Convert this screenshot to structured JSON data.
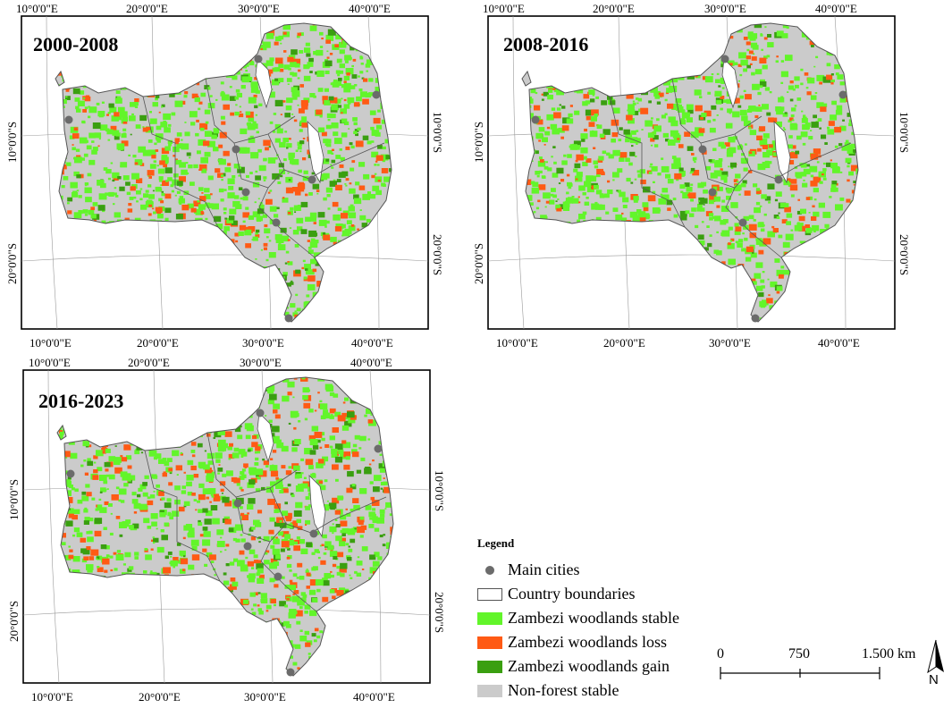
{
  "colors": {
    "stable": "#62f52a",
    "loss": "#ff5a14",
    "gain": "#3a9f10",
    "nonforest": "#cbcbcb",
    "city": "#6b6b6b",
    "boundary": "#555555"
  },
  "panels": [
    {
      "title": "2000-2008",
      "top_lon": [
        "10°0'0\"E",
        "20°0'0\"E",
        "30°0'0\"E",
        "40°0'0\"E"
      ],
      "bottom_lon": [
        "10°0'0\"E",
        "20°0'0\"E",
        "30°0'0\"E",
        "40°0'0\"E"
      ],
      "left_lat": [
        "10°0'0\"S",
        "20°0'0\"S"
      ],
      "right_lat": [
        "10°0'0\"S",
        "20°0'0\"S"
      ]
    },
    {
      "title": "2008-2016",
      "top_lon": [
        "10°0'0\"E",
        "20°0'0\"E",
        "30°0'0\"E",
        "40°0'0\"E"
      ],
      "bottom_lon": [
        "10°0'0\"E",
        "20°0'0\"E",
        "30°0'0\"E",
        "40°0'0\"E"
      ],
      "left_lat": [
        "10°0'0\"S",
        "20°0'0\"S"
      ],
      "right_lat": [
        "10°0'0\"S",
        "20°0'0\"S"
      ]
    },
    {
      "title": "2016-2023",
      "top_lon": [
        "10°0'0\"E",
        "20°0'0\"E",
        "30°0'0\"E",
        "40°0'0\"E"
      ],
      "bottom_lon": [
        "10°0'0\"E",
        "20°0'0\"E",
        "30°0'0\"E",
        "40°0'0\"E"
      ],
      "left_lat": [
        "10°0'0\"S",
        "20°0'0\"S"
      ],
      "right_lat": [
        "10°0'0\"S",
        "20°0'0\"S"
      ]
    }
  ],
  "legend": {
    "title": "Legend",
    "items": [
      {
        "label": "Main cities",
        "kind": "city"
      },
      {
        "label": "Country boundaries",
        "kind": "boundary"
      },
      {
        "label": "Zambezi woodlands stable",
        "kind": "stable"
      },
      {
        "label": "Zambezi woodlands loss",
        "kind": "loss"
      },
      {
        "label": "Zambezi woodlands gain",
        "kind": "gain"
      },
      {
        "label": "Non-forest stable",
        "kind": "nonforest"
      }
    ]
  },
  "scale_bar": {
    "labels": [
      "0",
      "750",
      "1.500 km"
    ]
  },
  "north_arrow": {
    "label": "N"
  }
}
